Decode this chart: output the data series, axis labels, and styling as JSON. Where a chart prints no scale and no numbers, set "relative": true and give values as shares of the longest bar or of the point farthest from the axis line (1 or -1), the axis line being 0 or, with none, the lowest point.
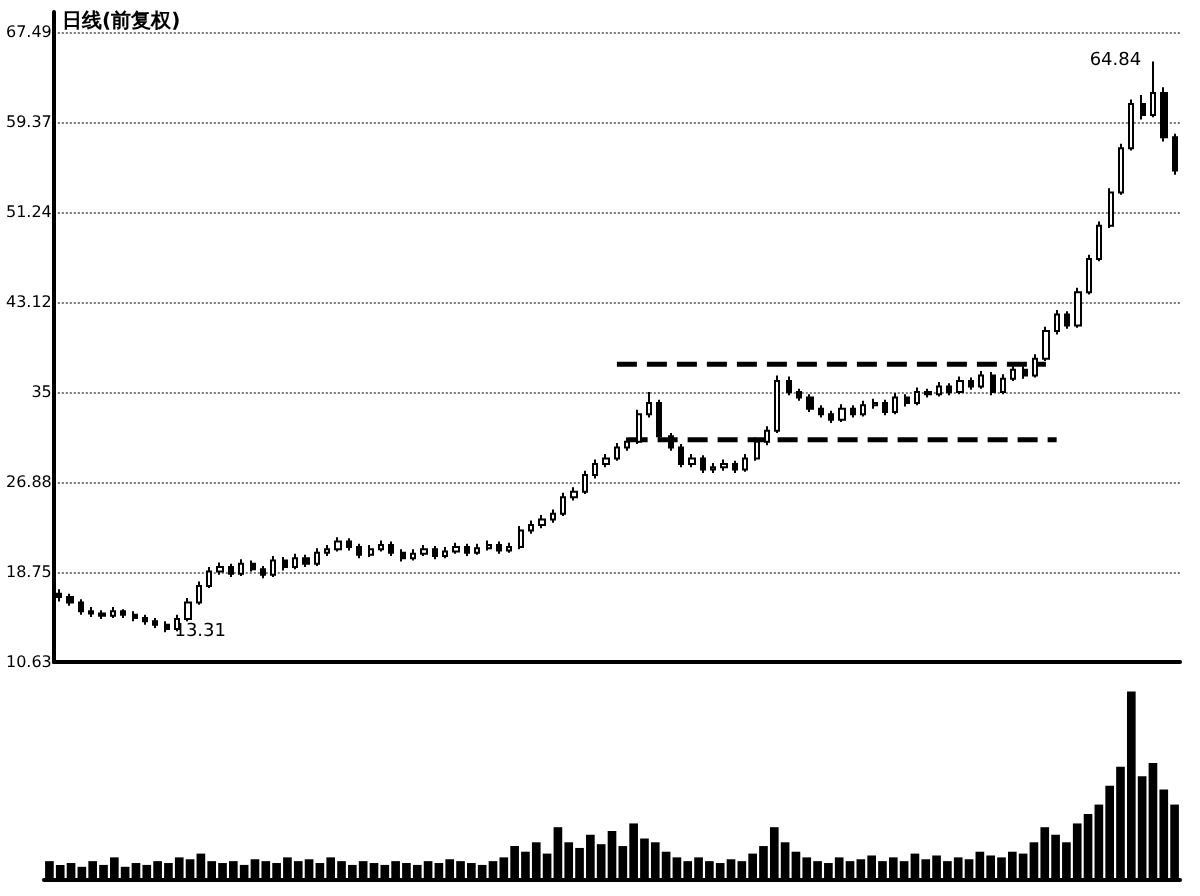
{
  "chart_data": [
    {
      "type": "candlestick",
      "title": "日线(前复权)",
      "categories": [
        null,
        null,
        null,
        null,
        null,
        null,
        null,
        null,
        null,
        null,
        null,
        null,
        null,
        null,
        null,
        null,
        null,
        null,
        null,
        null,
        null,
        null,
        null,
        null,
        null,
        null,
        null,
        null,
        null,
        null,
        null,
        null,
        null,
        null,
        null,
        null,
        null,
        null,
        null,
        null,
        null,
        null,
        null,
        null,
        null,
        null,
        null,
        null,
        null,
        null,
        null,
        null,
        null,
        null,
        null,
        null,
        null,
        null,
        null,
        null,
        null,
        null,
        null,
        null,
        null,
        null,
        null,
        null,
        null,
        null,
        null,
        null,
        null,
        null,
        null,
        null,
        null,
        null,
        null,
        null,
        null,
        null,
        null,
        null,
        null,
        null,
        null,
        null,
        null,
        null,
        null,
        null,
        null,
        null,
        null,
        null,
        null,
        null,
        null,
        null,
        null,
        null,
        null,
        null,
        null
      ],
      "ylim": [
        10.63,
        69.3
      ],
      "yticks": [
        10.63,
        18.75,
        26.88,
        35.0,
        43.12,
        51.24,
        59.37,
        67.49
      ],
      "grid": "y",
      "tick_labels": "y",
      "series": [
        {
          "type": "candlestick",
          "color": "#000000",
          "ohlc": [
            [
              16.8,
              17.2,
              16.1,
              16.5
            ],
            [
              16.5,
              16.8,
              15.7,
              16.0
            ],
            [
              16.0,
              16.3,
              14.9,
              15.2
            ],
            [
              15.2,
              15.6,
              14.7,
              15.0
            ],
            [
              15.0,
              15.3,
              14.5,
              14.8
            ],
            [
              14.8,
              15.6,
              14.6,
              15.2
            ],
            [
              15.2,
              15.4,
              14.6,
              14.9
            ],
            [
              14.9,
              15.2,
              14.3,
              14.6
            ],
            [
              14.6,
              14.9,
              14.0,
              14.3
            ],
            [
              14.3,
              14.6,
              13.7,
              14.0
            ],
            [
              14.0,
              14.3,
              13.31,
              13.6
            ],
            [
              13.6,
              14.9,
              13.4,
              14.5
            ],
            [
              14.5,
              16.4,
              14.3,
              16.0
            ],
            [
              16.0,
              17.9,
              15.8,
              17.5
            ],
            [
              17.5,
              19.2,
              17.3,
              18.8
            ],
            [
              18.8,
              19.6,
              18.5,
              19.2
            ],
            [
              19.2,
              19.5,
              18.3,
              18.6
            ],
            [
              18.6,
              19.9,
              18.4,
              19.5
            ],
            [
              19.5,
              19.8,
              18.8,
              19.0
            ],
            [
              19.0,
              19.3,
              18.2,
              18.5
            ],
            [
              18.5,
              20.2,
              18.3,
              19.8
            ],
            [
              19.8,
              20.1,
              18.9,
              19.2
            ],
            [
              19.2,
              20.4,
              19.0,
              20.0
            ],
            [
              20.0,
              20.3,
              19.2,
              19.5
            ],
            [
              19.5,
              20.9,
              19.3,
              20.5
            ],
            [
              20.5,
              21.2,
              20.2,
              20.8
            ],
            [
              20.8,
              21.9,
              20.6,
              21.5
            ],
            [
              21.5,
              21.8,
              20.7,
              21.0
            ],
            [
              21.0,
              21.3,
              20.0,
              20.3
            ],
            [
              20.3,
              21.2,
              20.1,
              20.8
            ],
            [
              20.8,
              21.6,
              20.6,
              21.2
            ],
            [
              21.2,
              21.5,
              20.2,
              20.5
            ],
            [
              20.5,
              20.8,
              19.7,
              20.0
            ],
            [
              20.0,
              20.8,
              19.8,
              20.4
            ],
            [
              20.4,
              21.2,
              20.2,
              20.8
            ],
            [
              20.8,
              21.1,
              19.9,
              20.2
            ],
            [
              20.2,
              21.0,
              20.0,
              20.6
            ],
            [
              20.6,
              21.4,
              20.4,
              21.0
            ],
            [
              21.0,
              21.3,
              20.2,
              20.5
            ],
            [
              20.5,
              21.3,
              20.3,
              20.9
            ],
            [
              20.9,
              21.6,
              20.7,
              21.2
            ],
            [
              21.2,
              21.5,
              20.4,
              20.7
            ],
            [
              20.7,
              21.4,
              20.5,
              21.0
            ],
            [
              21.0,
              22.9,
              20.8,
              22.5
            ],
            [
              22.5,
              23.4,
              22.2,
              23.0
            ],
            [
              23.0,
              23.9,
              22.7,
              23.5
            ],
            [
              23.5,
              24.4,
              23.2,
              24.0
            ],
            [
              24.0,
              25.9,
              23.8,
              25.5
            ],
            [
              25.5,
              26.4,
              25.2,
              26.0
            ],
            [
              26.0,
              27.9,
              25.8,
              27.5
            ],
            [
              27.5,
              28.9,
              27.2,
              28.5
            ],
            [
              28.5,
              29.4,
              28.2,
              29.0
            ],
            [
              29.0,
              30.4,
              28.8,
              30.0
            ],
            [
              30.0,
              30.9,
              29.7,
              30.5
            ],
            [
              30.5,
              33.4,
              30.3,
              33.0
            ],
            [
              33.0,
              35.0,
              32.7,
              34.0
            ],
            [
              34.0,
              34.3,
              30.7,
              31.0
            ],
            [
              31.0,
              31.3,
              29.7,
              30.0
            ],
            [
              30.0,
              30.3,
              28.2,
              28.5
            ],
            [
              28.5,
              29.4,
              28.2,
              29.0
            ],
            [
              29.0,
              29.3,
              27.7,
              28.0
            ],
            [
              28.0,
              28.6,
              27.7,
              28.2
            ],
            [
              28.2,
              28.9,
              27.9,
              28.5
            ],
            [
              28.5,
              28.8,
              27.7,
              28.0
            ],
            [
              28.0,
              29.4,
              27.8,
              29.0
            ],
            [
              29.0,
              30.9,
              28.8,
              30.5
            ],
            [
              30.5,
              31.9,
              30.2,
              31.5
            ],
            [
              31.5,
              36.5,
              31.3,
              36.0
            ],
            [
              36.0,
              36.4,
              34.7,
              35.0
            ],
            [
              35.0,
              35.3,
              34.2,
              34.5
            ],
            [
              34.5,
              34.8,
              33.2,
              33.5
            ],
            [
              33.5,
              33.8,
              32.7,
              33.0
            ],
            [
              33.0,
              33.3,
              32.2,
              32.5
            ],
            [
              32.5,
              33.9,
              32.3,
              33.5
            ],
            [
              33.5,
              33.8,
              32.7,
              33.0
            ],
            [
              33.0,
              34.2,
              32.8,
              33.8
            ],
            [
              33.8,
              34.4,
              33.5,
              34.0
            ],
            [
              34.0,
              34.3,
              32.9,
              33.2
            ],
            [
              33.2,
              34.9,
              33.0,
              34.5
            ],
            [
              34.5,
              34.8,
              33.7,
              34.0
            ],
            [
              34.0,
              35.4,
              33.8,
              35.0
            ],
            [
              35.0,
              35.3,
              34.5,
              34.8
            ],
            [
              34.8,
              35.9,
              34.6,
              35.5
            ],
            [
              35.5,
              35.8,
              34.7,
              35.0
            ],
            [
              35.0,
              36.4,
              34.8,
              36.0
            ],
            [
              36.0,
              36.3,
              35.2,
              35.5
            ],
            [
              35.5,
              36.9,
              35.3,
              36.5
            ],
            [
              36.5,
              36.8,
              34.7,
              35.0
            ],
            [
              35.0,
              36.6,
              34.8,
              36.2
            ],
            [
              36.2,
              37.4,
              36.0,
              37.0
            ],
            [
              37.0,
              37.3,
              36.2,
              36.5
            ],
            [
              36.5,
              38.4,
              36.3,
              38.0
            ],
            [
              38.0,
              40.9,
              37.8,
              40.5
            ],
            [
              40.5,
              42.4,
              40.2,
              42.0
            ],
            [
              42.0,
              42.3,
              40.7,
              41.0
            ],
            [
              41.0,
              44.4,
              40.8,
              44.0
            ],
            [
              44.0,
              47.4,
              43.8,
              47.0
            ],
            [
              47.0,
              50.4,
              46.8,
              50.0
            ],
            [
              50.0,
              53.4,
              49.8,
              53.0
            ],
            [
              53.0,
              57.4,
              52.8,
              57.0
            ],
            [
              57.0,
              61.4,
              56.8,
              61.0
            ],
            [
              61.0,
              61.8,
              59.6,
              60.0
            ],
            [
              60.0,
              64.84,
              59.8,
              62.0
            ],
            [
              62.0,
              62.5,
              57.6,
              58.0
            ],
            [
              58.0,
              58.3,
              54.6,
              55.0
            ]
          ]
        },
        {
          "type": "line",
          "color": "#000000",
          "line_style": "dashed",
          "values": [
            null,
            null,
            null,
            null,
            null,
            null,
            null,
            null,
            null,
            null,
            null,
            null,
            null,
            null,
            null,
            null,
            null,
            null,
            null,
            null,
            null,
            null,
            null,
            null,
            null,
            null,
            null,
            null,
            null,
            null,
            null,
            null,
            null,
            null,
            null,
            null,
            null,
            null,
            null,
            null,
            null,
            null,
            null,
            null,
            null,
            null,
            null,
            null,
            null,
            null,
            null,
            null,
            37.5,
            37.5,
            37.5,
            37.5,
            37.5,
            37.5,
            37.5,
            37.5,
            37.5,
            37.5,
            37.5,
            37.5,
            37.5,
            37.5,
            37.5,
            37.5,
            37.5,
            37.5,
            37.5,
            37.5,
            37.5,
            37.5,
            37.5,
            37.5,
            37.5,
            37.5,
            37.5,
            37.5,
            37.5,
            37.5,
            37.5,
            37.5,
            37.5,
            37.5,
            37.5,
            37.5,
            37.5,
            37.5,
            37.5,
            37.5,
            37.5,
            null,
            null,
            null,
            null,
            null,
            null,
            null,
            null,
            null,
            null,
            null,
            null
          ]
        },
        {
          "type": "line",
          "color": "#000000",
          "line_style": "dashed",
          "values": [
            null,
            null,
            null,
            null,
            null,
            null,
            null,
            null,
            null,
            null,
            null,
            null,
            null,
            null,
            null,
            null,
            null,
            null,
            null,
            null,
            null,
            null,
            null,
            null,
            null,
            null,
            null,
            null,
            null,
            null,
            null,
            null,
            null,
            null,
            null,
            null,
            null,
            null,
            null,
            null,
            null,
            null,
            null,
            null,
            null,
            null,
            null,
            null,
            null,
            null,
            null,
            null,
            null,
            30.7,
            30.7,
            30.7,
            30.7,
            30.7,
            30.7,
            30.7,
            30.7,
            30.7,
            30.7,
            30.7,
            30.7,
            30.7,
            30.7,
            30.7,
            30.7,
            30.7,
            30.7,
            30.7,
            30.7,
            30.7,
            30.7,
            30.7,
            30.7,
            30.7,
            30.7,
            30.7,
            30.7,
            30.7,
            30.7,
            30.7,
            30.7,
            30.7,
            30.7,
            30.7,
            30.7,
            30.7,
            30.7,
            30.7,
            30.7,
            30.7,
            null,
            null,
            null,
            null,
            null,
            null,
            null,
            null,
            null,
            null,
            null
          ]
        }
      ],
      "annotations": [
        "13.31",
        "64.84"
      ]
    },
    {
      "type": "bar",
      "relative": true,
      "color": "#000000",
      "categories": [
        null,
        null,
        null,
        null,
        null,
        null,
        null,
        null,
        null,
        null,
        null,
        null,
        null,
        null,
        null,
        null,
        null,
        null,
        null,
        null,
        null,
        null,
        null,
        null,
        null,
        null,
        null,
        null,
        null,
        null,
        null,
        null,
        null,
        null,
        null,
        null,
        null,
        null,
        null,
        null,
        null,
        null,
        null,
        null,
        null,
        null,
        null,
        null,
        null,
        null,
        null,
        null,
        null,
        null,
        null,
        null,
        null,
        null,
        null,
        null,
        null,
        null,
        null,
        null,
        null,
        null,
        null,
        null,
        null,
        null,
        null,
        null,
        null,
        null,
        null,
        null,
        null,
        null,
        null,
        null,
        null,
        null,
        null,
        null,
        null,
        null,
        null,
        null,
        null,
        null,
        null,
        null,
        null,
        null,
        null,
        null,
        null,
        null,
        null,
        null,
        null,
        null,
        null,
        null,
        null
      ],
      "values": [
        0.1,
        0.08,
        0.09,
        0.07,
        0.1,
        0.08,
        0.12,
        0.07,
        0.09,
        0.08,
        0.1,
        0.09,
        0.12,
        0.11,
        0.14,
        0.1,
        0.09,
        0.1,
        0.08,
        0.11,
        0.1,
        0.09,
        0.12,
        0.1,
        0.11,
        0.09,
        0.12,
        0.1,
        0.08,
        0.1,
        0.09,
        0.08,
        0.1,
        0.09,
        0.08,
        0.1,
        0.09,
        0.11,
        0.1,
        0.09,
        0.08,
        0.1,
        0.12,
        0.18,
        0.15,
        0.2,
        0.14,
        0.28,
        0.2,
        0.17,
        0.24,
        0.19,
        0.26,
        0.18,
        0.3,
        0.22,
        0.2,
        0.15,
        0.12,
        0.1,
        0.12,
        0.1,
        0.09,
        0.11,
        0.1,
        0.14,
        0.18,
        0.28,
        0.2,
        0.15,
        0.12,
        0.1,
        0.09,
        0.12,
        0.1,
        0.11,
        0.13,
        0.1,
        0.12,
        0.1,
        0.14,
        0.11,
        0.13,
        0.1,
        0.12,
        0.11,
        0.15,
        0.13,
        0.12,
        0.15,
        0.14,
        0.2,
        0.28,
        0.24,
        0.2,
        0.3,
        0.35,
        0.4,
        0.5,
        0.6,
        1.0,
        0.55,
        0.62,
        0.48,
        0.4
      ]
    }
  ]
}
